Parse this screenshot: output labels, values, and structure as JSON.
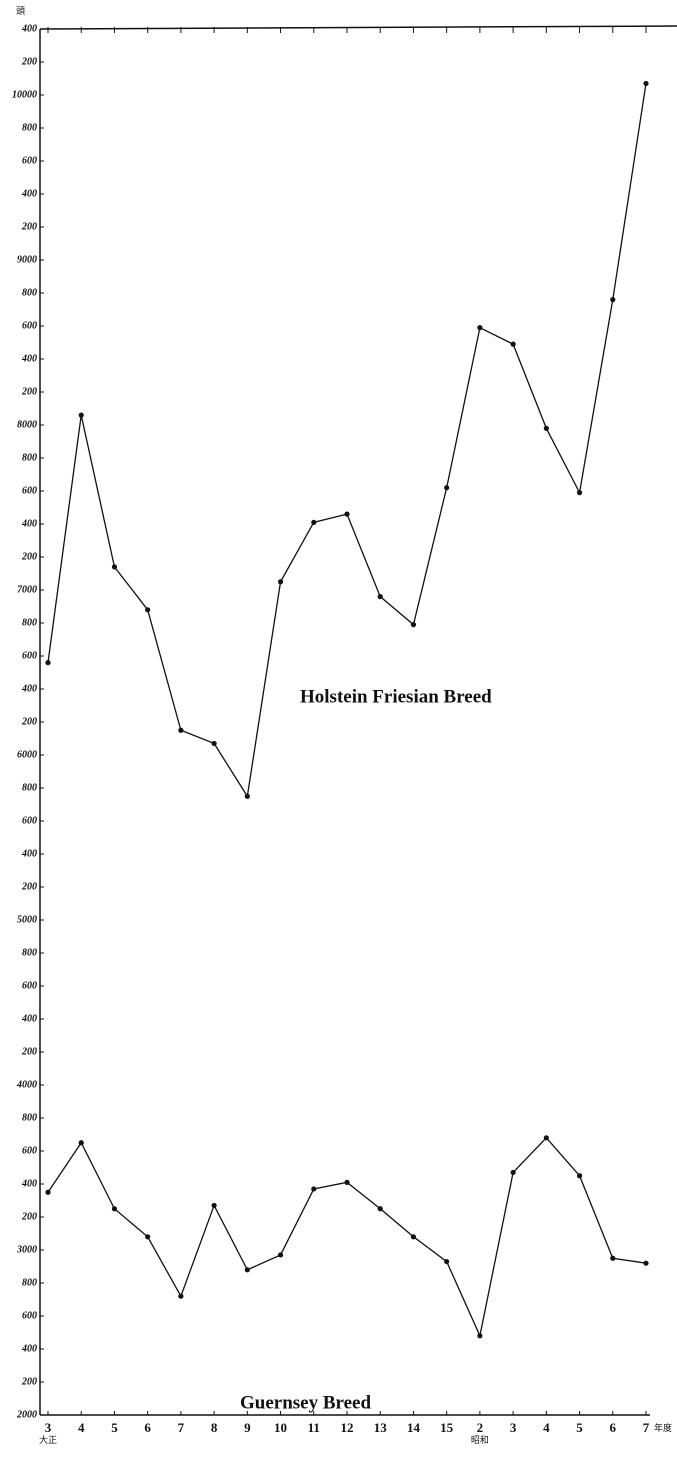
{
  "chart_data": {
    "type": "line",
    "y_unit": "頭",
    "x_unit": "年度",
    "x_era_labels": [
      "大正",
      "昭和"
    ],
    "categories": [
      "3",
      "4",
      "5",
      "6",
      "7",
      "8",
      "9",
      "10",
      "11",
      "12",
      "13",
      "14",
      "15",
      "2",
      "3",
      "4",
      "5",
      "6",
      "7"
    ],
    "series": [
      {
        "name": "Holstein Friesian Breed",
        "color": "#111111",
        "values": [
          6560,
          8060,
          7140,
          6880,
          6150,
          6070,
          5750,
          7050,
          7410,
          7460,
          6960,
          6790,
          7620,
          8590,
          8490,
          7980,
          7590,
          8760,
          10070
        ]
      },
      {
        "name": "Guernsey Breed",
        "color": "#111111",
        "values": [
          3350,
          3650,
          3250,
          3080,
          2720,
          3270,
          2880,
          2970,
          3370,
          3410,
          3250,
          3080,
          2930,
          2480,
          3470,
          3680,
          3450,
          2950,
          2920
        ]
      }
    ],
    "ylim": [
      2000,
      10400
    ],
    "yticks": [
      {
        "value": 10400,
        "label": "400"
      },
      {
        "value": 10200,
        "label": "200"
      },
      10000,
      {
        "value": 9800,
        "label": "800"
      },
      {
        "value": 9600,
        "label": "600"
      },
      {
        "value": 9400,
        "label": "400"
      },
      {
        "value": 9200,
        "label": "200"
      },
      9000,
      {
        "value": 8800,
        "label": "800"
      },
      {
        "value": 8600,
        "label": "600"
      },
      {
        "value": 8400,
        "label": "400"
      },
      {
        "value": 8200,
        "label": "200"
      },
      8000,
      {
        "value": 7800,
        "label": "800"
      },
      {
        "value": 7600,
        "label": "600"
      },
      {
        "value": 7400,
        "label": "400"
      },
      {
        "value": 7200,
        "label": "200"
      },
      7000,
      {
        "value": 6800,
        "label": "800"
      },
      {
        "value": 6600,
        "label": "600"
      },
      {
        "value": 6400,
        "label": "400"
      },
      {
        "value": 6200,
        "label": "200"
      },
      6000,
      {
        "value": 5800,
        "label": "800"
      },
      {
        "value": 5600,
        "label": "600"
      },
      {
        "value": 5400,
        "label": "400"
      },
      {
        "value": 5200,
        "label": "200"
      },
      5000,
      {
        "value": 4800,
        "label": "800"
      },
      {
        "value": 4600,
        "label": "600"
      },
      {
        "value": 4400,
        "label": "400"
      },
      {
        "value": 4200,
        "label": "200"
      },
      4000,
      {
        "value": 3800,
        "label": "800"
      },
      {
        "value": 3600,
        "label": "600"
      },
      {
        "value": 3400,
        "label": "400"
      },
      {
        "value": 3200,
        "label": "200"
      },
      3000,
      {
        "value": 2800,
        "label": "800"
      },
      {
        "value": 2600,
        "label": "600"
      },
      {
        "value": 2400,
        "label": "400"
      },
      {
        "value": 2200,
        "label": "200"
      },
      2000
    ],
    "grid": false
  }
}
